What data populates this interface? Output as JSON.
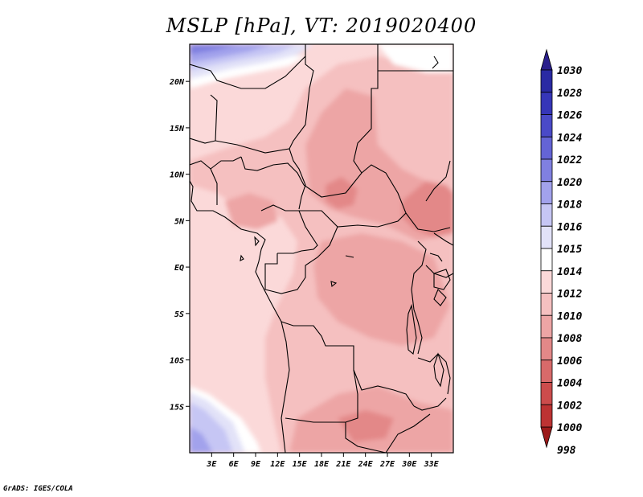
{
  "title": "MSLP [hPa], VT: 2019020400",
  "credit": "GrADS: IGES/COLA",
  "map": {
    "lon_range": [
      0,
      36
    ],
    "lat_range": [
      -20,
      24
    ],
    "lon_ticks": [
      {
        "value": 3,
        "label": "3E"
      },
      {
        "value": 6,
        "label": "6E"
      },
      {
        "value": 9,
        "label": "9E"
      },
      {
        "value": 12,
        "label": "12E"
      },
      {
        "value": 15,
        "label": "15E"
      },
      {
        "value": 18,
        "label": "18E"
      },
      {
        "value": 21,
        "label": "21E"
      },
      {
        "value": 24,
        "label": "24E"
      },
      {
        "value": 27,
        "label": "27E"
      },
      {
        "value": 30,
        "label": "30E"
      },
      {
        "value": 33,
        "label": "33E"
      }
    ],
    "lat_ticks": [
      {
        "value": 20,
        "label": "20N"
      },
      {
        "value": 15,
        "label": "15N"
      },
      {
        "value": 10,
        "label": "10N"
      },
      {
        "value": 5,
        "label": "5N"
      },
      {
        "value": 0,
        "label": "EQ"
      },
      {
        "value": -5,
        "label": "5S"
      },
      {
        "value": -10,
        "label": "10S"
      },
      {
        "value": -15,
        "label": "15S"
      }
    ]
  },
  "colorbar": {
    "levels": [
      {
        "label": "1030",
        "color": "#1f1f8f"
      },
      {
        "label": "1028",
        "color": "#2a2aa3"
      },
      {
        "label": "1026",
        "color": "#3636b8"
      },
      {
        "label": "1024",
        "color": "#4a4ac8"
      },
      {
        "label": "1022",
        "color": "#6464d6"
      },
      {
        "label": "1020",
        "color": "#8080e0"
      },
      {
        "label": "1018",
        "color": "#a2a2ec"
      },
      {
        "label": "1016",
        "color": "#c6c6f4"
      },
      {
        "label": "1015",
        "color": "#e2e2f8"
      },
      {
        "label": "1014",
        "color": "#ffffff"
      },
      {
        "label": "1012",
        "color": "#fbd9d9"
      },
      {
        "label": "1010",
        "color": "#f5c0c0"
      },
      {
        "label": "1008",
        "color": "#eda5a5"
      },
      {
        "label": "1006",
        "color": "#e38888"
      },
      {
        "label": "1004",
        "color": "#d86a6a"
      },
      {
        "label": "1002",
        "color": "#cc4c4c"
      },
      {
        "label": "1000",
        "color": "#bd3333"
      },
      {
        "label": "998",
        "color": "#a82222"
      }
    ],
    "top_arrow_color": "#2b1f8c",
    "bottom_arrow_color": "#9c1a1a"
  }
}
